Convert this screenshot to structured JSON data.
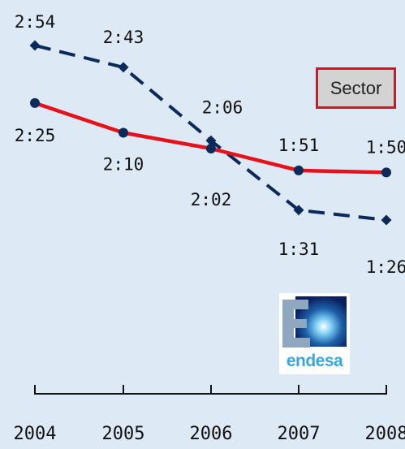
{
  "chart_data": {
    "type": "line",
    "x": [
      "2004",
      "2005",
      "2006",
      "2007",
      "2008"
    ],
    "ylim_minutes": [
      60,
      190
    ],
    "series": [
      {
        "name": "Sector",
        "style": "dashed",
        "color": "#0b2a5c",
        "values_minutes": [
          174,
          163,
          126,
          91,
          86
        ],
        "labels": [
          "2:54",
          "2:43",
          "2:06",
          "1:31",
          "1:26"
        ]
      },
      {
        "name": "",
        "style": "solid",
        "color": "#e8101a",
        "values_minutes": [
          145,
          130,
          122,
          111,
          110
        ],
        "labels": [
          "2:25",
          "2:10",
          "2:02",
          "1:51",
          "1:50"
        ]
      }
    ],
    "legend": {
      "label": "Sector",
      "placement": "top-right"
    },
    "grid": false
  },
  "logo": {
    "mark": "E",
    "word": "endesa",
    "colors": {
      "blue": "#3aa6dc",
      "dark": "#0a1f5c",
      "grey": "#8fa7bf"
    }
  }
}
